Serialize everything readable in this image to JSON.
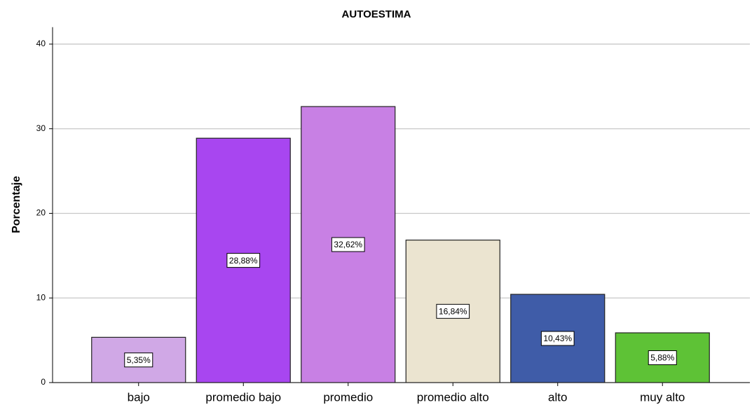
{
  "chart_data": {
    "type": "bar",
    "title": "AUTOESTIMA",
    "y_label": "Porcentaje",
    "categories": [
      "bajo",
      "promedio bajo",
      "promedio",
      "promedio alto",
      "alto",
      "muy alto"
    ],
    "values": [
      5.35,
      28.88,
      32.62,
      16.84,
      10.43,
      5.88
    ],
    "value_labels": [
      "5,35%",
      "28,88%",
      "32,62%",
      "16,84%",
      "10,43%",
      "5,88%"
    ],
    "colors": [
      "#d0a8e6",
      "#a846f0",
      "#c880e4",
      "#ebe4d0",
      "#3f5ca8",
      "#5ec236"
    ],
    "ylim": [
      0,
      42
    ],
    "yticks": [
      0,
      10,
      20,
      30,
      40
    ],
    "grid": true
  }
}
